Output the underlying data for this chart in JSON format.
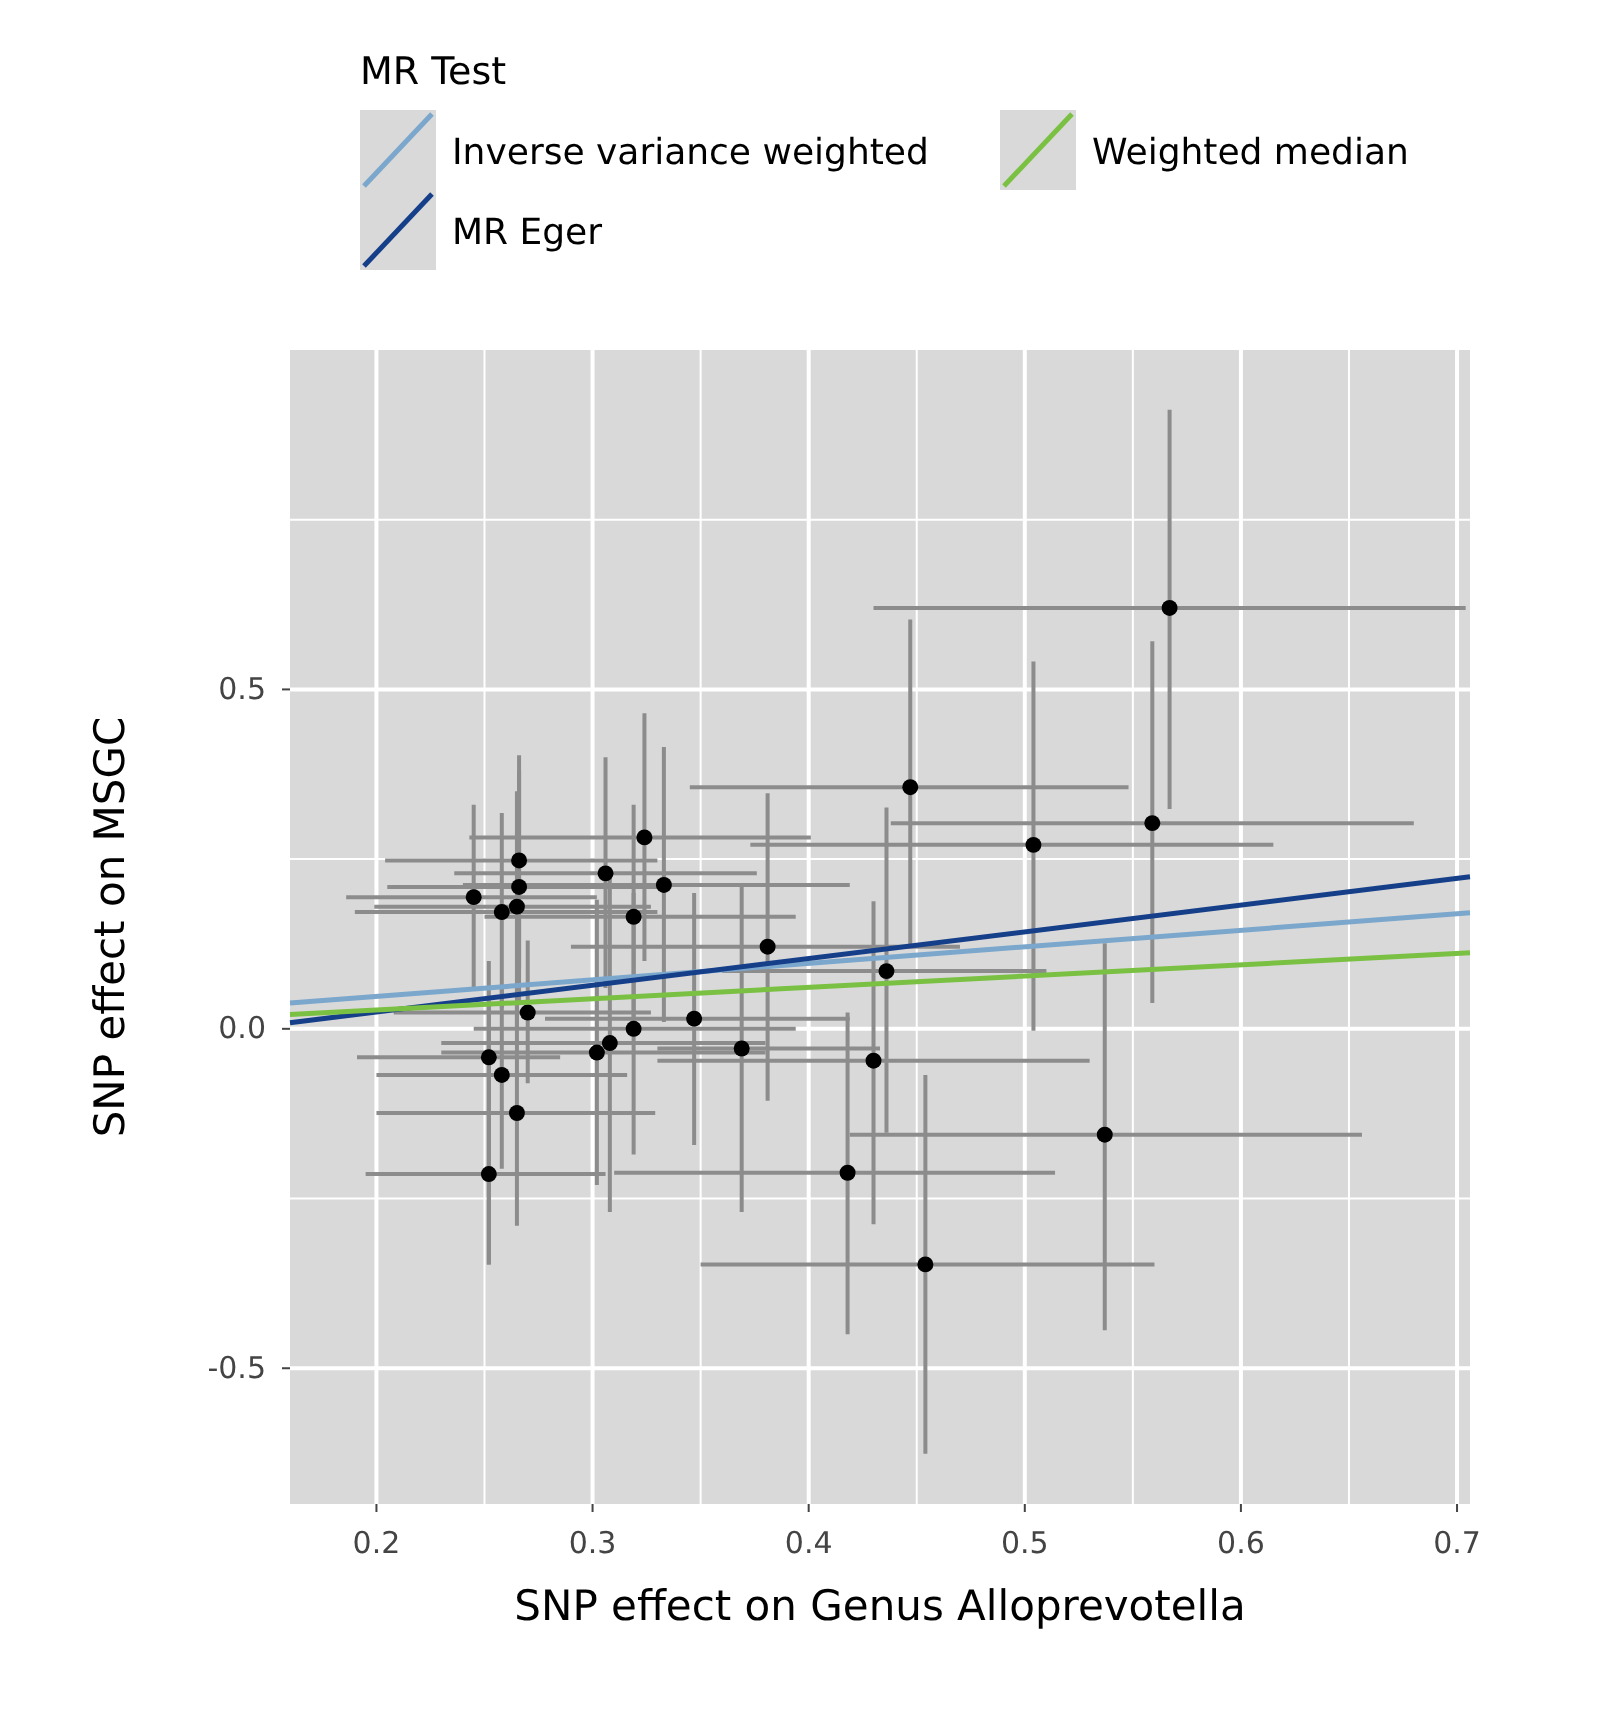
{
  "chart_data": {
    "type": "scatter",
    "xlabel": "SNP effect on Genus Alloprevotella",
    "ylabel": "SNP effect on MSGC",
    "legend_title": "MR Test",
    "legend": "top left",
    "grid": true,
    "xlim": [
      0.16,
      0.706
    ],
    "ylim": [
      -0.7,
      1.0
    ],
    "xticks": [
      0.2,
      0.3,
      0.4,
      0.5,
      0.6,
      0.7
    ],
    "yticks": [
      {
        "value": -0.5,
        "label": "-0.5"
      },
      {
        "value": 0,
        "label": "0.0"
      },
      {
        "value": 0.5,
        "label": "0.5"
      }
    ],
    "series": [
      {
        "color": "#000000",
        "marker": "circle",
        "x": [
          0.567,
          0.447,
          0.559,
          0.504,
          0.436,
          0.43,
          0.537,
          0.418,
          0.454,
          0.324,
          0.266,
          0.306,
          0.333,
          0.266,
          0.245,
          0.265,
          0.258,
          0.319,
          0.381,
          0.27,
          0.347,
          0.319,
          0.369,
          0.308,
          0.302,
          0.252,
          0.258,
          0.265,
          0.252
        ],
        "values": [
          0.62,
          0.356,
          0.303,
          0.271,
          0.085,
          -0.047,
          -0.156,
          -0.212,
          -0.347,
          0.282,
          0.248,
          0.229,
          0.212,
          0.209,
          0.194,
          0.18,
          0.172,
          0.165,
          0.121,
          0.024,
          0.015,
          0,
          -0.029,
          -0.021,
          -0.035,
          -0.042,
          -0.068,
          -0.124,
          -0.214
        ],
        "xerrors": [
          [
            0.43,
            0.704
          ],
          [
            0.345,
            0.548
          ],
          [
            0.438,
            0.68
          ],
          [
            0.373,
            0.615
          ],
          [
            0.36,
            0.51
          ],
          [
            0.33,
            0.53
          ],
          [
            0.419,
            0.656
          ],
          [
            0.31,
            0.514
          ],
          [
            0.35,
            0.56
          ],
          [
            0.243,
            0.401
          ],
          [
            0.204,
            0.33
          ],
          [
            0.236,
            0.376
          ],
          [
            0.24,
            0.419
          ],
          [
            0.205,
            0.333
          ],
          [
            0.186,
            0.302
          ],
          [
            0.199,
            0.327
          ],
          [
            0.19,
            0.33
          ],
          [
            0.25,
            0.394
          ],
          [
            0.29,
            0.47
          ],
          [
            0.208,
            0.327
          ],
          [
            0.278,
            0.419
          ],
          [
            0.245,
            0.394
          ],
          [
            0.33,
            0.433
          ],
          [
            0.23,
            0.38
          ],
          [
            0.23,
            0.38
          ],
          [
            0.191,
            0.285
          ],
          [
            0.2,
            0.316
          ],
          [
            0.2,
            0.329
          ],
          [
            0.195,
            0.306
          ]
        ],
        "errors": [
          [
            0.324,
            0.912
          ],
          [
            0.12,
            0.603
          ],
          [
            0.038,
            0.571
          ],
          [
            -0.003,
            0.541
          ],
          [
            -0.153,
            0.326
          ],
          [
            -0.288,
            0.188
          ],
          [
            -0.444,
            0.126
          ],
          [
            -0.45,
            0.024
          ],
          [
            -0.626,
            -0.068
          ],
          [
            0.1,
            0.465
          ],
          [
            0.09,
            0.403
          ],
          [
            0.06,
            0.4
          ],
          [
            0.01,
            0.415
          ],
          [
            0.04,
            0.38
          ],
          [
            0.06,
            0.33
          ],
          [
            0.0,
            0.35
          ],
          [
            0.03,
            0.318
          ],
          [
            0.0,
            0.33
          ],
          [
            -0.106,
            0.347
          ],
          [
            -0.08,
            0.13
          ],
          [
            -0.171,
            0.2
          ],
          [
            -0.185,
            0.2
          ],
          [
            -0.27,
            0.211
          ],
          [
            -0.27,
            0.23
          ],
          [
            -0.23,
            0.19
          ],
          [
            -0.347,
            0.1
          ],
          [
            -0.206,
            0.06
          ],
          [
            -0.29,
            0.04
          ],
          [
            -0.347,
            0.04
          ]
        ]
      },
      {
        "type": "line",
        "name": "Inverse variance weighted",
        "color": "#7ba7cc",
        "x": [
          0.16,
          0.706
        ],
        "values": [
          0.038,
          0.171
        ]
      },
      {
        "type": "line",
        "name": "MR Eger",
        "color": "#163f8a",
        "x": [
          0.16,
          0.706
        ],
        "values": [
          0.009,
          0.224
        ]
      },
      {
        "type": "line",
        "name": "Weighted median",
        "color": "#7ac143",
        "x": [
          0.16,
          0.706
        ],
        "values": [
          0.021,
          0.112
        ]
      }
    ]
  }
}
